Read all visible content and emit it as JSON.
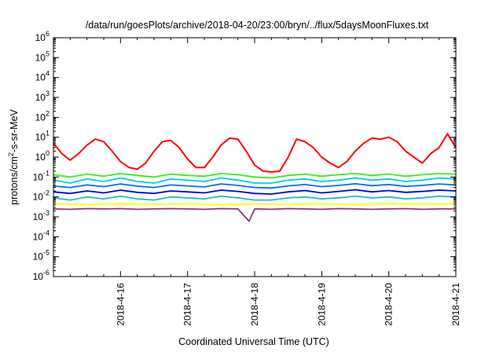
{
  "chart_data": {
    "type": "line",
    "title": "/data/run/goesPlots/archive/2018-04-20/23:00/bryn/../flux/5daysMoonFluxes.txt",
    "xlabel": "Coordinated Universal Time (UTC)",
    "ylabel": {
      "base": "protons/cm",
      "sup": "2",
      "rest": "-s-sr-MeV"
    },
    "yscale": "log",
    "ylim": [
      1e-06,
      1000000.0
    ],
    "xlim": [
      "2018-04-15 00:00",
      "2018-04-21 00:00"
    ],
    "grid": false,
    "y_ticks": [
      {
        "exp": "-6",
        "value": 1e-06
      },
      {
        "exp": "-5",
        "value": 1e-05
      },
      {
        "exp": "-4",
        "value": 0.0001
      },
      {
        "exp": "-3",
        "value": 0.001
      },
      {
        "exp": "-2",
        "value": 0.01
      },
      {
        "exp": "-1",
        "value": 0.1
      },
      {
        "exp": "0",
        "value": 1
      },
      {
        "exp": "1",
        "value": 10
      },
      {
        "exp": "2",
        "value": 100
      },
      {
        "exp": "3",
        "value": 1000.0
      },
      {
        "exp": "4",
        "value": 10000.0
      },
      {
        "exp": "5",
        "value": 100000.0
      },
      {
        "exp": "6",
        "value": 1000000.0
      }
    ],
    "x_ticks": [
      {
        "label": "2018-4-16",
        "value": "2018-04-16"
      },
      {
        "label": "2018-4-17",
        "value": "2018-04-17"
      },
      {
        "label": "2018-4-18",
        "value": "2018-04-18"
      },
      {
        "label": "2018-4-19",
        "value": "2018-04-19"
      },
      {
        "label": "2018-4-20",
        "value": "2018-04-20"
      },
      {
        "label": "2018-4-21",
        "value": "2018-04-21"
      }
    ],
    "series": [
      {
        "color": "#ff0000",
        "x": [
          "2018-04-15 00:00",
          "2018-04-15 03:00",
          "2018-04-15 06:00",
          "2018-04-15 09:00",
          "2018-04-15 12:00",
          "2018-04-15 15:00",
          "2018-04-15 18:00",
          "2018-04-15 21:00",
          "2018-04-16 00:00",
          "2018-04-16 03:00",
          "2018-04-16 06:00",
          "2018-04-16 09:00",
          "2018-04-16 12:00",
          "2018-04-16 15:00",
          "2018-04-16 18:00",
          "2018-04-16 21:00",
          "2018-04-17 00:00",
          "2018-04-17 03:00",
          "2018-04-17 06:00",
          "2018-04-17 09:00",
          "2018-04-17 12:00",
          "2018-04-17 15:00",
          "2018-04-17 18:00",
          "2018-04-17 21:00",
          "2018-04-18 00:00",
          "2018-04-18 03:00",
          "2018-04-18 06:00",
          "2018-04-18 09:00",
          "2018-04-18 12:00",
          "2018-04-18 15:00",
          "2018-04-18 18:00",
          "2018-04-18 21:00",
          "2018-04-19 00:00",
          "2018-04-19 03:00",
          "2018-04-19 06:00",
          "2018-04-19 09:00",
          "2018-04-19 12:00",
          "2018-04-19 15:00",
          "2018-04-19 18:00",
          "2018-04-19 21:00",
          "2018-04-20 00:00",
          "2018-04-20 03:00",
          "2018-04-20 06:00",
          "2018-04-20 09:00",
          "2018-04-20 12:00",
          "2018-04-20 15:00",
          "2018-04-20 18:00",
          "2018-04-20 21:00",
          "2018-04-21 00:00"
        ],
        "values": [
          5,
          1.5,
          0.7,
          1.5,
          4,
          8,
          6,
          2,
          0.6,
          0.3,
          0.25,
          0.5,
          2,
          6,
          7,
          3,
          0.8,
          0.3,
          0.3,
          1,
          4,
          9,
          8,
          2,
          0.4,
          0.2,
          0.18,
          0.2,
          1,
          8,
          6,
          3,
          1,
          0.5,
          0.3,
          0.6,
          2,
          5,
          9,
          8,
          10,
          6,
          2,
          1,
          0.5,
          1.5,
          3,
          15,
          3
        ]
      },
      {
        "color": "#33ee22",
        "x": [
          "2018-04-15 00:00",
          "2018-04-15 06:00",
          "2018-04-15 12:00",
          "2018-04-15 18:00",
          "2018-04-16 00:00",
          "2018-04-16 06:00",
          "2018-04-16 12:00",
          "2018-04-16 18:00",
          "2018-04-17 00:00",
          "2018-04-17 06:00",
          "2018-04-17 12:00",
          "2018-04-17 18:00",
          "2018-04-18 00:00",
          "2018-04-18 06:00",
          "2018-04-18 12:00",
          "2018-04-18 18:00",
          "2018-04-19 00:00",
          "2018-04-19 06:00",
          "2018-04-19 12:00",
          "2018-04-19 18:00",
          "2018-04-20 00:00",
          "2018-04-20 06:00",
          "2018-04-20 12:00",
          "2018-04-20 18:00",
          "2018-04-21 00:00"
        ],
        "values": [
          0.13,
          0.1,
          0.14,
          0.11,
          0.15,
          0.12,
          0.1,
          0.14,
          0.12,
          0.11,
          0.15,
          0.13,
          0.1,
          0.09,
          0.12,
          0.14,
          0.11,
          0.13,
          0.15,
          0.12,
          0.14,
          0.11,
          0.13,
          0.15,
          0.14
        ]
      },
      {
        "color": "#00ccee",
        "x": [
          "2018-04-15 00:00",
          "2018-04-15 06:00",
          "2018-04-15 12:00",
          "2018-04-15 18:00",
          "2018-04-16 00:00",
          "2018-04-16 06:00",
          "2018-04-16 12:00",
          "2018-04-16 18:00",
          "2018-04-17 00:00",
          "2018-04-17 06:00",
          "2018-04-17 12:00",
          "2018-04-17 18:00",
          "2018-04-18 00:00",
          "2018-04-18 06:00",
          "2018-04-18 12:00",
          "2018-04-18 18:00",
          "2018-04-19 00:00",
          "2018-04-19 06:00",
          "2018-04-19 12:00",
          "2018-04-19 18:00",
          "2018-04-20 00:00",
          "2018-04-20 06:00",
          "2018-04-20 12:00",
          "2018-04-20 18:00",
          "2018-04-21 00:00"
        ],
        "values": [
          0.07,
          0.05,
          0.08,
          0.06,
          0.09,
          0.06,
          0.05,
          0.08,
          0.07,
          0.06,
          0.09,
          0.07,
          0.05,
          0.05,
          0.07,
          0.08,
          0.06,
          0.07,
          0.09,
          0.07,
          0.08,
          0.06,
          0.07,
          0.09,
          0.08
        ]
      },
      {
        "color": "#1166ff",
        "x": [
          "2018-04-15 00:00",
          "2018-04-15 06:00",
          "2018-04-15 12:00",
          "2018-04-15 18:00",
          "2018-04-16 00:00",
          "2018-04-16 06:00",
          "2018-04-16 12:00",
          "2018-04-16 18:00",
          "2018-04-17 00:00",
          "2018-04-17 06:00",
          "2018-04-17 12:00",
          "2018-04-17 18:00",
          "2018-04-18 00:00",
          "2018-04-18 06:00",
          "2018-04-18 12:00",
          "2018-04-18 18:00",
          "2018-04-19 00:00",
          "2018-04-19 06:00",
          "2018-04-19 12:00",
          "2018-04-19 18:00",
          "2018-04-20 00:00",
          "2018-04-20 06:00",
          "2018-04-20 12:00",
          "2018-04-20 18:00",
          "2018-04-21 00:00"
        ],
        "values": [
          0.035,
          0.03,
          0.04,
          0.033,
          0.045,
          0.035,
          0.03,
          0.04,
          0.036,
          0.032,
          0.045,
          0.038,
          0.03,
          0.028,
          0.036,
          0.042,
          0.033,
          0.038,
          0.046,
          0.037,
          0.042,
          0.034,
          0.038,
          0.045,
          0.04
        ]
      },
      {
        "color": "#0000dd",
        "x": [
          "2018-04-15 00:00",
          "2018-04-15 06:00",
          "2018-04-15 12:00",
          "2018-04-15 18:00",
          "2018-04-16 00:00",
          "2018-04-16 06:00",
          "2018-04-16 12:00",
          "2018-04-16 18:00",
          "2018-04-17 00:00",
          "2018-04-17 06:00",
          "2018-04-17 12:00",
          "2018-04-17 18:00",
          "2018-04-18 00:00",
          "2018-04-18 06:00",
          "2018-04-18 12:00",
          "2018-04-18 18:00",
          "2018-04-19 00:00",
          "2018-04-19 06:00",
          "2018-04-19 12:00",
          "2018-04-19 18:00",
          "2018-04-20 00:00",
          "2018-04-20 06:00",
          "2018-04-20 12:00",
          "2018-04-20 18:00",
          "2018-04-21 00:00"
        ],
        "values": [
          0.018,
          0.015,
          0.02,
          0.016,
          0.022,
          0.017,
          0.015,
          0.02,
          0.018,
          0.016,
          0.022,
          0.019,
          0.015,
          0.014,
          0.018,
          0.021,
          0.016,
          0.019,
          0.023,
          0.018,
          0.021,
          0.017,
          0.019,
          0.022,
          0.02
        ]
      },
      {
        "color": "#22bbbb",
        "x": [
          "2018-04-15 00:00",
          "2018-04-15 06:00",
          "2018-04-15 12:00",
          "2018-04-15 18:00",
          "2018-04-16 00:00",
          "2018-04-16 06:00",
          "2018-04-16 12:00",
          "2018-04-16 18:00",
          "2018-04-17 00:00",
          "2018-04-17 06:00",
          "2018-04-17 12:00",
          "2018-04-17 18:00",
          "2018-04-18 00:00",
          "2018-04-18 06:00",
          "2018-04-18 12:00",
          "2018-04-18 18:00",
          "2018-04-19 00:00",
          "2018-04-19 06:00",
          "2018-04-19 12:00",
          "2018-04-19 18:00",
          "2018-04-20 00:00",
          "2018-04-20 06:00",
          "2018-04-20 12:00",
          "2018-04-20 18:00",
          "2018-04-21 00:00"
        ],
        "values": [
          0.009,
          0.007,
          0.01,
          0.008,
          0.011,
          0.008,
          0.007,
          0.01,
          0.009,
          0.008,
          0.011,
          0.009,
          0.007,
          0.007,
          0.009,
          0.01,
          0.008,
          0.009,
          0.011,
          0.009,
          0.01,
          0.008,
          0.009,
          0.011,
          0.01
        ]
      },
      {
        "color": "#ffff00",
        "x": [
          "2018-04-15 00:00",
          "2018-04-15 12:00",
          "2018-04-16 00:00",
          "2018-04-16 12:00",
          "2018-04-17 00:00",
          "2018-04-17 12:00",
          "2018-04-18 00:00",
          "2018-04-18 12:00",
          "2018-04-19 00:00",
          "2018-04-19 12:00",
          "2018-04-20 00:00",
          "2018-04-20 12:00",
          "2018-04-21 00:00"
        ],
        "values": [
          0.0045,
          0.0042,
          0.0046,
          0.0043,
          0.0045,
          0.0042,
          0.0044,
          0.0043,
          0.0045,
          0.0043,
          0.0046,
          0.0044,
          0.0045
        ]
      },
      {
        "color": "#993377",
        "x": [
          "2018-04-15 00:00",
          "2018-04-15 06:00",
          "2018-04-15 12:00",
          "2018-04-15 18:00",
          "2018-04-16 00:00",
          "2018-04-16 06:00",
          "2018-04-16 12:00",
          "2018-04-16 18:00",
          "2018-04-17 00:00",
          "2018-04-17 06:00",
          "2018-04-17 12:00",
          "2018-04-17 18:00",
          "2018-04-17 22:00",
          "2018-04-18 00:00",
          "2018-04-18 06:00",
          "2018-04-18 12:00",
          "2018-04-18 18:00",
          "2018-04-19 00:00",
          "2018-04-19 06:00",
          "2018-04-19 12:00",
          "2018-04-19 18:00",
          "2018-04-20 00:00",
          "2018-04-20 06:00",
          "2018-04-20 12:00",
          "2018-04-20 18:00",
          "2018-04-21 00:00"
        ],
        "values": [
          0.0025,
          0.0024,
          0.0026,
          0.0025,
          0.0026,
          0.0024,
          0.0025,
          0.0026,
          0.0025,
          0.0024,
          0.0026,
          0.0025,
          0.0006,
          0.0025,
          0.0024,
          0.0026,
          0.0025,
          0.0024,
          0.0026,
          0.0025,
          0.0024,
          0.0025,
          0.0026,
          0.0024,
          0.0025,
          0.0025
        ]
      }
    ]
  }
}
